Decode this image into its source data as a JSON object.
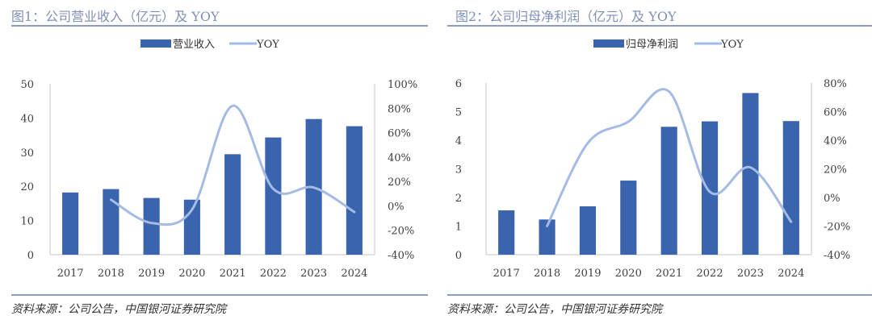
{
  "chart_data": [
    {
      "type": "bar",
      "title": "图1：公司营业收入（亿元）及 YOY",
      "categories": [
        "2017",
        "2018",
        "2019",
        "2020",
        "2021",
        "2022",
        "2023",
        "2024"
      ],
      "series": [
        {
          "name": "营业收入",
          "type": "bar",
          "axis": "left",
          "values": [
            18.2,
            19.2,
            16.6,
            16.1,
            29.4,
            34.3,
            39.7,
            37.6
          ]
        },
        {
          "name": "YOY",
          "type": "line",
          "axis": "right",
          "values": [
            null,
            5,
            -14,
            -3,
            82,
            14,
            15,
            -5
          ]
        }
      ],
      "left_axis": {
        "ylim": [
          0,
          50
        ],
        "ticks": [
          "0",
          "10",
          "20",
          "30",
          "40",
          "50"
        ],
        "tick_values": [
          0,
          10,
          20,
          30,
          40,
          50
        ]
      },
      "right_axis": {
        "ylim": [
          -40,
          100
        ],
        "ticks": [
          "-40%",
          "-20%",
          "0%",
          "20%",
          "40%",
          "60%",
          "80%",
          "100%"
        ],
        "tick_values": [
          -40,
          -20,
          0,
          20,
          40,
          60,
          80,
          100
        ]
      },
      "legend": [
        "营业收入",
        "YOY"
      ],
      "legend_position": "top",
      "grid": false,
      "source": "资料来源：公司公告，中国银河证券研究院"
    },
    {
      "type": "bar",
      "title": "图2：公司归母净利润（亿元）及 YOY",
      "categories": [
        "2017",
        "2018",
        "2019",
        "2020",
        "2021",
        "2022",
        "2023",
        "2024"
      ],
      "series": [
        {
          "name": "归母净利润",
          "type": "bar",
          "axis": "left",
          "values": [
            1.55,
            1.23,
            1.69,
            2.59,
            4.47,
            4.66,
            5.65,
            4.67
          ]
        },
        {
          "name": "YOY",
          "type": "line",
          "axis": "right",
          "values": [
            null,
            -20,
            38,
            53,
            74,
            4,
            21,
            -17
          ]
        }
      ],
      "left_axis": {
        "ylim": [
          0,
          6
        ],
        "ticks": [
          "0",
          "1",
          "2",
          "3",
          "4",
          "5",
          "6"
        ],
        "tick_values": [
          0,
          1,
          2,
          3,
          4,
          5,
          6
        ]
      },
      "right_axis": {
        "ylim": [
          -40,
          80
        ],
        "ticks": [
          "-40%",
          "-20%",
          "0%",
          "20%",
          "40%",
          "60%",
          "80%"
        ],
        "tick_values": [
          -40,
          -20,
          0,
          20,
          40,
          60,
          80
        ]
      },
      "legend": [
        "归母净利润",
        "YOY"
      ],
      "legend_position": "top",
      "grid": false,
      "source": "资料来源：公司公告，中国银河证券研究院"
    }
  ],
  "colors": {
    "bar": "#3a64ae",
    "line": "#a5bbe3",
    "axis": "#d9d9d9",
    "title": "#7f90b8",
    "rule": "#8c9dc3"
  }
}
